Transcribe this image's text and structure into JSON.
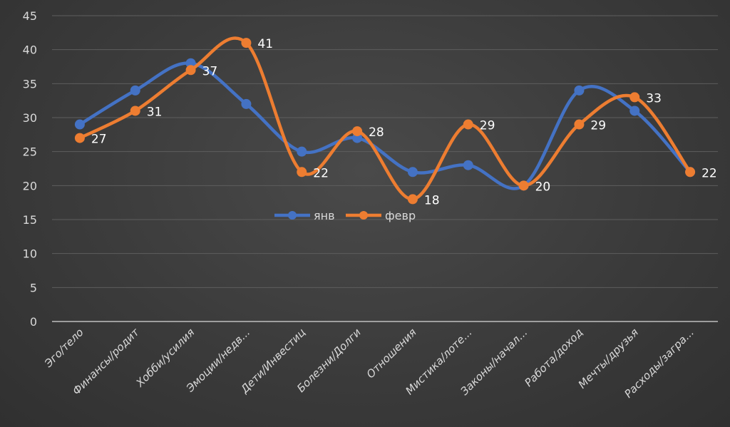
{
  "chart_data": {
    "type": "line",
    "title": "",
    "xlabel": "",
    "ylabel": "",
    "ylim": [
      0,
      45
    ],
    "yticks": [
      0,
      5,
      10,
      15,
      20,
      25,
      30,
      35,
      40,
      45
    ],
    "grid": true,
    "smooth": true,
    "legend_position": "center",
    "categories": [
      "Эго/тело",
      "Финансы/родит",
      "Хобби/усилия",
      "Эмоции/недв...",
      "Дети/Инвестиц",
      "Болезни/Долги",
      "Отношения",
      "Мистика/лоте...",
      "Законы/начал...",
      "Работа/доход",
      "Мечты/друзья",
      "Расходы/загра..."
    ],
    "series": [
      {
        "name": "янв",
        "color": "#4472c4",
        "values": [
          29,
          34,
          38,
          32,
          25,
          27,
          22,
          23,
          20,
          34,
          31,
          22
        ],
        "data_labels": false
      },
      {
        "name": "февр",
        "color": "#ed7d31",
        "values": [
          27,
          31,
          37,
          41,
          22,
          28,
          18,
          29,
          20,
          29,
          33,
          22
        ],
        "data_labels": true
      }
    ]
  }
}
